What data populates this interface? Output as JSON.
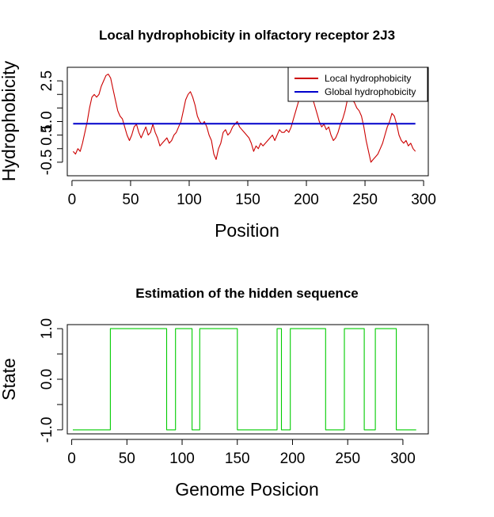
{
  "chart_data": [
    {
      "type": "line",
      "title": "Local hydrophobicity in olfactory receptor 2J3",
      "xlabel": "Position",
      "ylabel": "Hydrophobicity",
      "xlim": [
        -4,
        304
      ],
      "ylim": [
        -1.0,
        3.0
      ],
      "xticks": [
        0,
        50,
        100,
        150,
        200,
        250,
        300
      ],
      "xtick_labels": [
        "0",
        "50",
        "100",
        "150",
        "200",
        "250",
        "300"
      ],
      "yticks": [
        -0.5,
        0.0,
        0.5,
        1.0,
        1.5,
        2.0,
        2.5
      ],
      "ytick_labels": [
        "-0.5",
        "",
        "0.5",
        "1.0",
        "",
        "",
        "2.5"
      ],
      "legend": {
        "placement": "top-right",
        "entries": [
          "Local hydrophobicity",
          "Global hydrophobicity"
        ]
      },
      "series": [
        {
          "name": "Local hydrophobicity",
          "color": "#cc0000",
          "x": [
            1,
            3,
            5,
            7,
            9,
            11,
            13,
            15,
            17,
            19,
            21,
            23,
            25,
            27,
            29,
            31,
            33,
            35,
            37,
            39,
            41,
            43,
            45,
            47,
            49,
            51,
            53,
            55,
            57,
            59,
            61,
            63,
            65,
            67,
            69,
            71,
            73,
            75,
            77,
            79,
            81,
            83,
            85,
            87,
            89,
            91,
            93,
            95,
            97,
            99,
            101,
            103,
            105,
            107,
            109,
            111,
            113,
            115,
            117,
            119,
            121,
            123,
            125,
            127,
            129,
            131,
            133,
            135,
            137,
            139,
            141,
            143,
            145,
            147,
            149,
            151,
            153,
            155,
            157,
            159,
            161,
            163,
            165,
            167,
            169,
            171,
            173,
            175,
            177,
            179,
            181,
            183,
            185,
            187,
            189,
            191,
            193,
            195,
            197,
            199,
            201,
            203,
            205,
            207,
            209,
            211,
            213,
            215,
            217,
            219,
            221,
            223,
            225,
            227,
            229,
            231,
            233,
            235,
            237,
            239,
            241,
            243,
            245,
            247,
            249,
            251,
            253,
            255,
            257,
            259,
            261,
            263,
            265,
            267,
            269,
            271,
            273,
            275,
            277,
            279,
            281,
            283,
            285,
            287,
            289,
            291,
            293
          ],
          "y": [
            -0.1,
            -0.2,
            0.0,
            -0.1,
            0.2,
            0.6,
            1.0,
            1.5,
            1.9,
            2.0,
            1.9,
            2.0,
            2.3,
            2.5,
            2.7,
            2.75,
            2.6,
            2.2,
            1.8,
            1.4,
            1.2,
            1.1,
            0.8,
            0.5,
            0.3,
            0.5,
            0.8,
            0.9,
            0.6,
            0.4,
            0.6,
            0.8,
            0.5,
            0.6,
            0.9,
            0.6,
            0.4,
            0.1,
            0.2,
            0.3,
            0.4,
            0.2,
            0.3,
            0.5,
            0.6,
            0.8,
            1.0,
            1.4,
            1.8,
            2.0,
            2.1,
            1.9,
            1.6,
            1.2,
            1.0,
            0.9,
            1.0,
            0.8,
            0.5,
            0.3,
            -0.2,
            -0.4,
            0.0,
            0.2,
            0.6,
            0.7,
            0.5,
            0.6,
            0.8,
            0.9,
            1.0,
            0.8,
            0.7,
            0.6,
            0.5,
            0.4,
            0.2,
            -0.1,
            0.1,
            0.0,
            0.2,
            0.1,
            0.2,
            0.3,
            0.4,
            0.5,
            0.3,
            0.5,
            0.7,
            0.6,
            0.6,
            0.7,
            0.6,
            0.8,
            1.1,
            1.4,
            1.7,
            2.0,
            2.2,
            2.3,
            2.1,
            2.0,
            1.9,
            1.6,
            1.3,
            1.0,
            0.8,
            0.9,
            0.7,
            0.8,
            0.5,
            0.3,
            0.4,
            0.6,
            0.9,
            1.1,
            1.4,
            1.8,
            2.0,
            1.8,
            1.7,
            1.5,
            1.4,
            1.2,
            0.8,
            0.3,
            -0.1,
            -0.5,
            -0.4,
            -0.3,
            -0.2,
            0.0,
            0.2,
            0.5,
            0.8,
            1.0,
            1.3,
            1.2,
            0.9,
            0.5,
            0.3,
            0.2,
            0.3,
            0.1,
            0.2,
            0.0,
            -0.1
          ]
        },
        {
          "name": "Global hydrophobicity",
          "color": "#0000cc",
          "x": [
            1,
            293
          ],
          "y": [
            0.92,
            0.92
          ]
        }
      ]
    },
    {
      "type": "line",
      "title": "Estimation of the hidden sequence",
      "xlabel": "Genome Posicion",
      "ylabel": "State",
      "xlim": [
        -4,
        323
      ],
      "ylim": [
        -1.08,
        1.08
      ],
      "xticks": [
        0,
        50,
        100,
        150,
        200,
        250,
        300
      ],
      "xtick_labels": [
        "0",
        "50",
        "100",
        "150",
        "200",
        "250",
        "300"
      ],
      "yticks": [
        -1.0,
        -0.5,
        0.0,
        0.5,
        1.0
      ],
      "ytick_labels": [
        "-1.0",
        "",
        "0.0",
        "",
        "1.0"
      ],
      "series": [
        {
          "color": "#00cc00",
          "x": [
            1,
            35,
            35,
            86,
            86,
            94,
            94,
            109,
            109,
            116,
            116,
            150,
            150,
            186,
            186,
            190,
            190,
            198,
            198,
            230,
            230,
            247,
            247,
            265,
            265,
            275,
            275,
            294,
            294,
            312
          ],
          "y": [
            -1,
            -1,
            1,
            1,
            -1,
            -1,
            1,
            1,
            -1,
            -1,
            1,
            1,
            -1,
            -1,
            1,
            1,
            -1,
            -1,
            1,
            1,
            -1,
            -1,
            1,
            1,
            -1,
            -1,
            1,
            1,
            -1,
            -1
          ]
        }
      ]
    }
  ]
}
